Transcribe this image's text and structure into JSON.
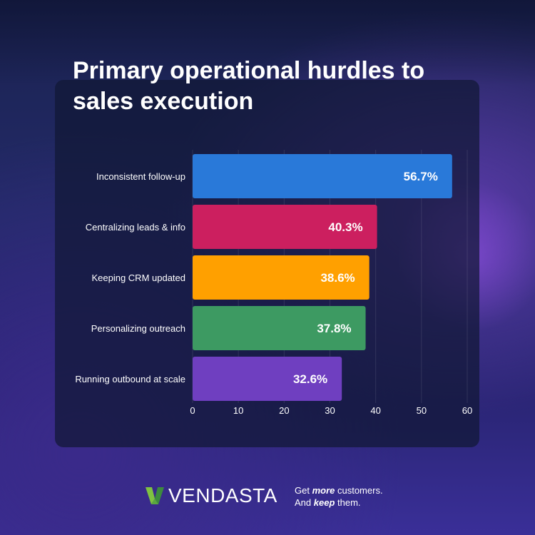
{
  "title": "Primary operational hurdles to sales execution",
  "brand": {
    "name": "VENDASTA",
    "tagline_line1_a": "Get ",
    "tagline_line1_b": "more",
    "tagline_line1_c": " customers.",
    "tagline_line2_a": "And ",
    "tagline_line2_b": "keep",
    "tagline_line2_c": " them.",
    "logo_icon": "vendasta-v-icon",
    "logo_colors": [
      "#7fc241",
      "#3d8b3d"
    ]
  },
  "chart_data": {
    "type": "bar",
    "orientation": "horizontal",
    "title": "Primary operational hurdles to sales execution",
    "xlabel": "",
    "ylabel": "",
    "categories": [
      "Inconsistent follow-up",
      "Centralizing leads & info",
      "Keeping CRM updated",
      "Personalizing outreach",
      "Running outbound at scale"
    ],
    "values": [
      56.7,
      40.3,
      38.6,
      37.8,
      32.6
    ],
    "value_labels": [
      "56.7%",
      "40.3%",
      "38.6%",
      "37.8%",
      "32.6%"
    ],
    "colors": [
      "#2979d9",
      "#cc1f5f",
      "#ffa000",
      "#3d9a62",
      "#6f3fc0"
    ],
    "xlim": [
      0,
      60
    ],
    "xticks": [
      "0",
      "10",
      "20",
      "30",
      "40",
      "50",
      "60"
    ],
    "grid": true
  }
}
